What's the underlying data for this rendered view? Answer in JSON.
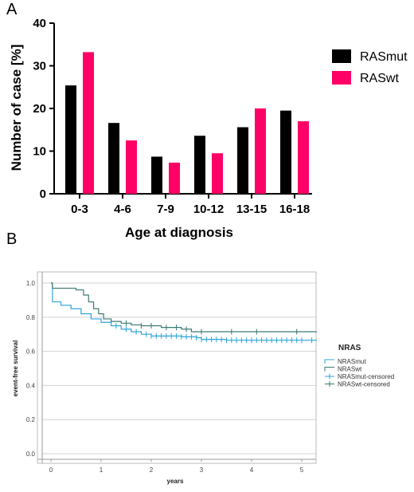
{
  "chart_data": [
    {
      "panel_label": "A",
      "type": "bar",
      "categories": [
        "0-3",
        "4-6",
        "7-9",
        "10-12",
        "13-15",
        "16-18"
      ],
      "series": [
        {
          "name": "RASmut",
          "color": "#000000",
          "values": [
            25.4,
            16.6,
            8.7,
            13.6,
            15.6,
            19.5
          ]
        },
        {
          "name": "RASwt",
          "color": "#FF0066",
          "values": [
            33.2,
            12.5,
            7.3,
            9.5,
            20.0,
            17.0
          ]
        }
      ],
      "xlabel": "Age at diagnosis",
      "ylabel": "Number of case [%]",
      "ylim": [
        0,
        40
      ],
      "yticks": [
        0,
        10,
        20,
        30,
        40
      ],
      "grid": false,
      "legend_position": "right"
    },
    {
      "panel_label": "B",
      "type": "line",
      "xlabel": "years",
      "ylabel": "event-free survival",
      "xlim": [
        0,
        5.3
      ],
      "ylim": [
        0,
        1.0
      ],
      "xticks": [
        0,
        1,
        2,
        3,
        4,
        5
      ],
      "yticks": [
        "0.0",
        "0.2",
        "0.4",
        "0.6",
        "0.8",
        "1.0"
      ],
      "grid": true,
      "legend_title": "NRAS",
      "legend_position": "right",
      "series": [
        {
          "name": "NRASmut",
          "color": "#2FA4D8",
          "x": [
            0,
            0.03,
            0.2,
            0.4,
            0.6,
            0.8,
            1.0,
            1.2,
            1.4,
            1.6,
            1.8,
            2.0,
            2.3,
            2.6,
            2.9,
            3.0,
            3.5,
            4.0,
            5.3
          ],
          "y": [
            1.0,
            0.89,
            0.87,
            0.85,
            0.82,
            0.79,
            0.77,
            0.75,
            0.73,
            0.715,
            0.7,
            0.69,
            0.69,
            0.685,
            0.68,
            0.67,
            0.665,
            0.665,
            0.665
          ]
        },
        {
          "name": "NRASwt",
          "color": "#3C7A73",
          "x": [
            0,
            0.03,
            0.5,
            0.65,
            0.75,
            0.85,
            0.95,
            1.05,
            1.2,
            1.4,
            1.6,
            1.8,
            2.2,
            2.6,
            2.8,
            5.3
          ],
          "y": [
            1.0,
            0.97,
            0.96,
            0.93,
            0.89,
            0.85,
            0.82,
            0.79,
            0.775,
            0.765,
            0.755,
            0.75,
            0.74,
            0.73,
            0.715,
            0.715
          ]
        },
        {
          "name": "NRASmut-censored",
          "color": "#2FA4D8",
          "censor_for": "NRASmut",
          "x": [
            1.3,
            1.5,
            1.7,
            1.9,
            2.0,
            2.1,
            2.2,
            2.3,
            2.4,
            2.5,
            2.6,
            2.7,
            2.8,
            2.9,
            3.0,
            3.1,
            3.2,
            3.3,
            3.4,
            3.5,
            3.6,
            3.7,
            3.8,
            3.9,
            4.0,
            4.1,
            4.2,
            4.3,
            4.4,
            4.5,
            4.6,
            4.7,
            4.8,
            4.9,
            5.0,
            5.2
          ]
        },
        {
          "name": "NRASwt-censored",
          "color": "#3C7A73",
          "censor_for": "NRASwt",
          "x": [
            1.5,
            1.8,
            2.0,
            2.3,
            2.5,
            2.7,
            3.0,
            3.6,
            4.1,
            4.9
          ]
        }
      ]
    }
  ]
}
